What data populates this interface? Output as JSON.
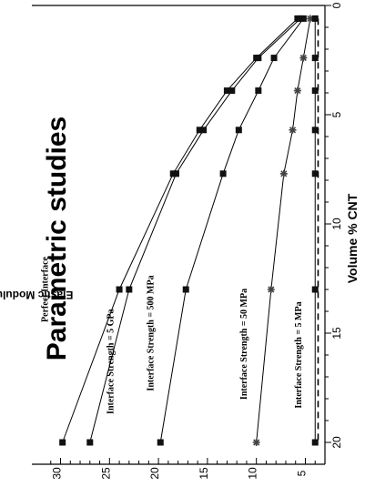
{
  "chart_data": {
    "type": "line",
    "title": "Parametric studies",
    "xlabel": "Volume % CNT",
    "ylabel": "Elastic Modulus (GPa)",
    "xlim": [
      0,
      21
    ],
    "ylim": [
      3,
      32
    ],
    "x_ticks": [
      0,
      5,
      10,
      15,
      20
    ],
    "y_ticks": [
      5,
      10,
      15,
      20,
      25,
      30
    ],
    "grid": false,
    "orientation": "rotated-90-ccw",
    "series": [
      {
        "name": "Perfect Interface",
        "marker": "square",
        "x": [
          0.6,
          2.4,
          3.9,
          5.7,
          7.7,
          13,
          20
        ],
        "y": [
          5.8,
          10,
          13,
          15.8,
          18.5,
          24,
          29.8
        ]
      },
      {
        "name": "Interface Strength = 5 GPa",
        "marker": "square",
        "x": [
          0.6,
          2.4,
          3.9,
          5.7,
          7.7,
          13,
          20
        ],
        "y": [
          5.5,
          9.8,
          12.5,
          15.4,
          18.2,
          23,
          27
        ]
      },
      {
        "name": "Interface Strength = 500 MPa",
        "marker": "square",
        "x": [
          0.6,
          2.4,
          3.9,
          5.7,
          7.7,
          13,
          20
        ],
        "y": [
          5.2,
          8.2,
          9.8,
          11.8,
          13.4,
          17.2,
          19.8
        ]
      },
      {
        "name": "Interface Strength = 50 MPa",
        "marker": "star",
        "x": [
          0.6,
          2.4,
          3.9,
          5.7,
          7.7,
          13,
          20
        ],
        "y": [
          4.5,
          5.2,
          5.8,
          6.3,
          7.2,
          8.5,
          10
        ]
      },
      {
        "name": "Interface Strength = 5 MPa",
        "marker": "square",
        "x": [
          0.6,
          2.4,
          3.9,
          5.7,
          7.7,
          13,
          20
        ],
        "y": [
          4.0,
          4.0,
          4.0,
          4.0,
          4.0,
          4.0,
          4.0
        ]
      }
    ],
    "dashed_series": {
      "x": [
        0.6,
        2.4,
        3.9,
        5.7,
        7.7,
        10,
        13,
        16,
        20
      ],
      "y": [
        3.7,
        3.7,
        3.7,
        3.7,
        3.7,
        3.7,
        3.7,
        3.7,
        3.7
      ]
    }
  }
}
